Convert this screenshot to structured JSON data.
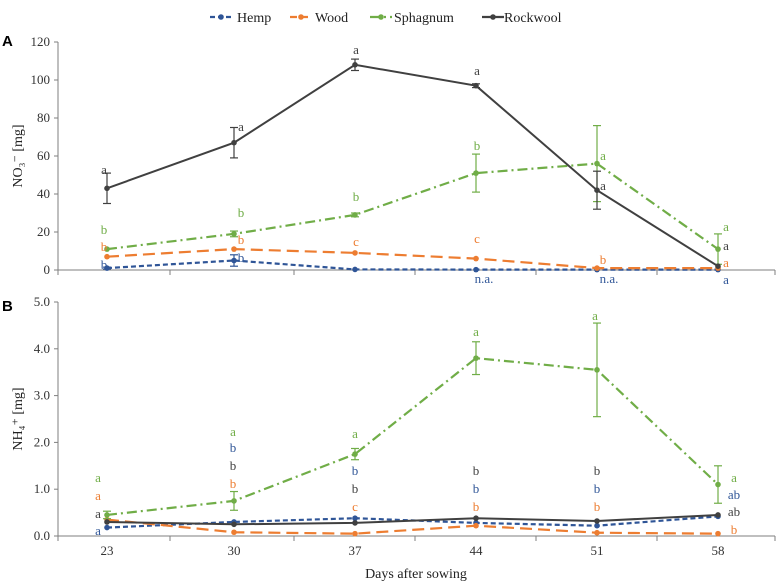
{
  "chart_data": [
    {
      "panel": "A",
      "type": "line",
      "ylabel": "NO₃⁻ [mg]",
      "xlabel": "",
      "ylim": [
        0,
        120
      ],
      "yticks": [
        0,
        20,
        40,
        60,
        80,
        100,
        120
      ],
      "x": [
        23,
        30,
        37,
        44,
        51,
        58
      ],
      "series": [
        {
          "name": "Hemp",
          "color": "#2F5597",
          "values": [
            1,
            5,
            0.3,
            0.2,
            0.2,
            0.2
          ],
          "errors": [
            0.5,
            3,
            0,
            0,
            0,
            0
          ],
          "letters": [
            {
              "i": 0,
              "text": "b",
              "dy": 0
            },
            {
              "i": 1,
              "text": "b",
              "dy": 0
            },
            {
              "i": 3,
              "text": "n.a.",
              "dy": 12
            },
            {
              "i": 4,
              "text": "n.a.",
              "dy": 12
            },
            {
              "i": 5,
              "text": "a",
              "dy": 12
            }
          ]
        },
        {
          "name": "Wood",
          "color": "#ED7D31",
          "values": [
            7,
            11,
            9,
            6,
            1,
            1
          ],
          "errors": [
            0,
            0,
            0,
            0,
            0,
            0
          ],
          "letters": [
            {
              "i": 0,
              "text": "b",
              "dy": 0
            },
            {
              "i": 1,
              "text": "b",
              "dy": 0
            },
            {
              "i": 2,
              "text": "c",
              "dy": 0
            },
            {
              "i": 3,
              "text": "c",
              "dy": 0
            },
            {
              "i": 4,
              "text": "b",
              "dy": 0
            },
            {
              "i": 5,
              "text": "a",
              "dy": 0
            }
          ]
        },
        {
          "name": "Sphagnum",
          "color": "#70AD47",
          "values": [
            11,
            19,
            29,
            51,
            56,
            11
          ],
          "errors": [
            0,
            1.5,
            1,
            10,
            20,
            8
          ],
          "letters": [
            {
              "i": 0,
              "text": "b",
              "dy": 0
            },
            {
              "i": 1,
              "text": "b",
              "dy": 0
            },
            {
              "i": 2,
              "text": "b",
              "dy": 0
            },
            {
              "i": 3,
              "text": "b",
              "dy": 0
            },
            {
              "i": 4,
              "text": "a",
              "dy": 0
            },
            {
              "i": 5,
              "text": "a",
              "dy": 0
            }
          ]
        },
        {
          "name": "Rockwool",
          "color": "#404040",
          "values": [
            43,
            67,
            108,
            97,
            42,
            2
          ],
          "errors": [
            8,
            8,
            3,
            1,
            10,
            0
          ],
          "letters": [
            {
              "i": 0,
              "text": "a",
              "dy": 0
            },
            {
              "i": 1,
              "text": "a",
              "dy": 0
            },
            {
              "i": 2,
              "text": "a",
              "dy": 0
            },
            {
              "i": 3,
              "text": "a",
              "dy": 0
            },
            {
              "i": 4,
              "text": "a",
              "dy": 0
            },
            {
              "i": 5,
              "text": "a",
              "dy": 0
            }
          ]
        }
      ]
    },
    {
      "panel": "B",
      "type": "line",
      "ylabel": "NH₄⁺ [mg]",
      "xlabel": "Days after sowing",
      "ylim": [
        0,
        5
      ],
      "yticks": [
        "0.0",
        "1.0",
        "2.0",
        "3.0",
        "4.0",
        "5.0"
      ],
      "x": [
        23,
        30,
        37,
        44,
        51,
        58
      ],
      "series": [
        {
          "name": "Hemp",
          "color": "#2F5597",
          "values": [
            0.18,
            0.3,
            0.38,
            0.28,
            0.22,
            0.42
          ],
          "errors": [
            0,
            0,
            0,
            0,
            0,
            0
          ],
          "letters": [
            {
              "i": 0,
              "text": "a"
            },
            {
              "i": 1,
              "text": "b"
            },
            {
              "i": 2,
              "text": "b"
            },
            {
              "i": 3,
              "text": "b"
            },
            {
              "i": 4,
              "text": "b"
            },
            {
              "i": 5,
              "text": "ab"
            }
          ]
        },
        {
          "name": "Wood",
          "color": "#ED7D31",
          "values": [
            0.35,
            0.08,
            0.05,
            0.22,
            0.07,
            0.05
          ],
          "errors": [
            0,
            0,
            0,
            0,
            0,
            0
          ],
          "letters": [
            {
              "i": 0,
              "text": "a"
            },
            {
              "i": 1,
              "text": "b"
            },
            {
              "i": 2,
              "text": "c"
            },
            {
              "i": 3,
              "text": "b"
            },
            {
              "i": 4,
              "text": "b"
            },
            {
              "i": 5,
              "text": "b"
            }
          ]
        },
        {
          "name": "Sphagnum",
          "color": "#70AD47",
          "values": [
            0.45,
            0.75,
            1.75,
            3.8,
            3.55,
            1.1
          ],
          "errors": [
            0.08,
            0.2,
            0.12,
            0.35,
            1.0,
            0.4
          ],
          "letters": [
            {
              "i": 0,
              "text": "a"
            },
            {
              "i": 1,
              "text": "a"
            },
            {
              "i": 2,
              "text": "a"
            },
            {
              "i": 3,
              "text": "a"
            },
            {
              "i": 4,
              "text": "a"
            },
            {
              "i": 5,
              "text": "a"
            }
          ]
        },
        {
          "name": "Rockwool",
          "color": "#404040",
          "values": [
            0.3,
            0.25,
            0.28,
            0.38,
            0.32,
            0.45
          ],
          "errors": [
            0,
            0,
            0,
            0,
            0,
            0
          ],
          "letters": [
            {
              "i": 0,
              "text": "a"
            },
            {
              "i": 1,
              "text": "b"
            },
            {
              "i": 2,
              "text": "b"
            },
            {
              "i": 3,
              "text": "b"
            },
            {
              "i": 4,
              "text": "b"
            },
            {
              "i": 5,
              "text": "ab"
            }
          ]
        }
      ]
    }
  ],
  "legend": [
    {
      "name": "Hemp",
      "color": "#2F5597"
    },
    {
      "name": "Wood",
      "color": "#ED7D31"
    },
    {
      "name": "Sphagnum",
      "color": "#70AD47"
    },
    {
      "name": "Rockwool",
      "color": "#404040"
    }
  ]
}
